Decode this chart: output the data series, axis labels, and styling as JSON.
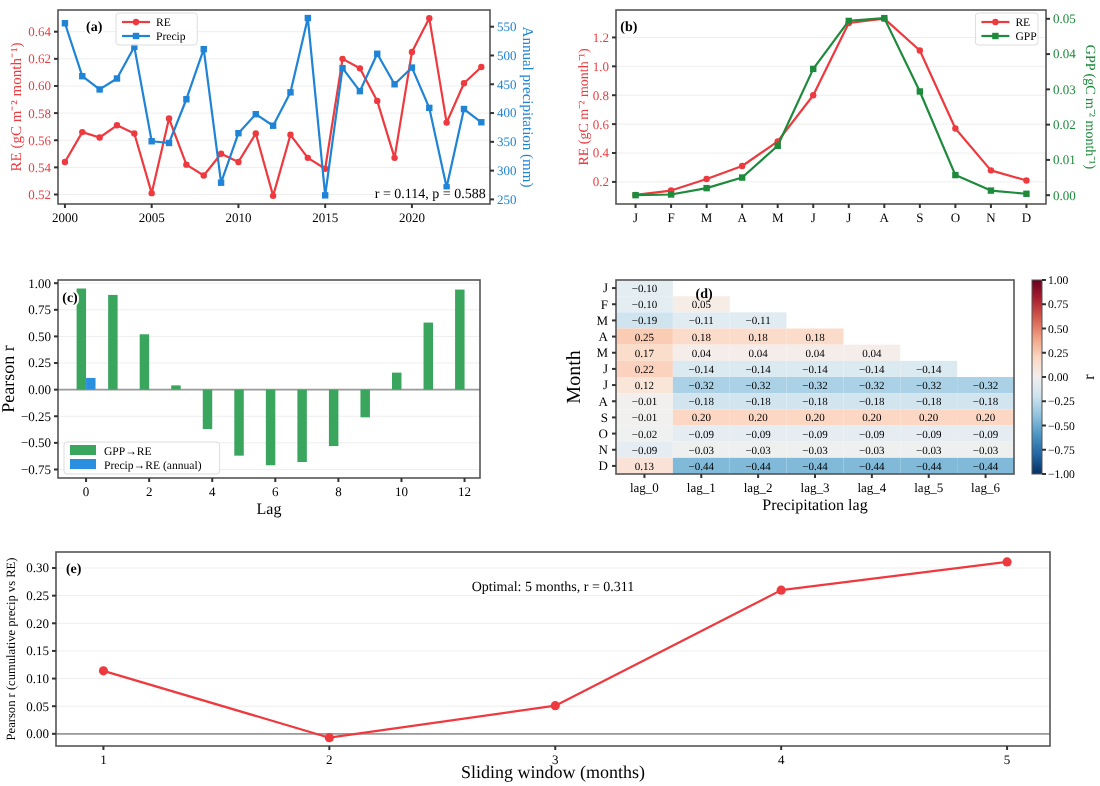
{
  "chart_data": [
    {
      "type": "line",
      "x": [
        2000,
        2001,
        2002,
        2003,
        2004,
        2005,
        2006,
        2007,
        2008,
        2009,
        2010,
        2011,
        2012,
        2013,
        2014,
        2015,
        2016,
        2017,
        2018,
        2019,
        2020,
        2021,
        2022,
        2023,
        2024
      ],
      "series": [
        {
          "name": "RE",
          "color": "#ee3a3f",
          "marker": "circle",
          "values": [
            0.544,
            0.566,
            0.562,
            0.571,
            0.565,
            0.521,
            0.576,
            0.542,
            0.534,
            0.55,
            0.544,
            0.565,
            0.519,
            0.564,
            0.547,
            0.539,
            0.62,
            0.613,
            0.589,
            0.547,
            0.625,
            0.65,
            0.573,
            0.602,
            0.614
          ]
        },
        {
          "name": "Precip",
          "color": "#1f83d6",
          "marker": "square",
          "axis": "y2",
          "values": [
            556,
            464,
            441,
            460,
            515,
            351,
            348,
            424,
            511,
            279,
            365,
            398,
            378,
            436,
            565,
            257,
            478,
            438,
            503,
            450,
            479,
            409,
            271,
            407,
            384
          ]
        }
      ],
      "ylabel": "RE (gC m⁻² month⁻¹)",
      "y2label": "Annual precipitation (mm)",
      "xlim": [
        1999.6,
        2024.5
      ],
      "xticks": [
        2000,
        2005,
        2010,
        2015,
        2020
      ],
      "ylim": [
        0.513,
        0.656
      ],
      "yticks": [
        0.52,
        0.54,
        0.56,
        0.58,
        {
          "value": 0.6,
          "label": "0.60"
        },
        0.62,
        0.64
      ],
      "y2lim": [
        242,
        579
      ],
      "y2ticks": [
        250,
        300,
        350,
        400,
        450,
        500,
        550
      ],
      "grid": "y",
      "legend": "top left",
      "annotations": [
        "(a)",
        "r = 0.114, p = 0.588"
      ]
    },
    {
      "type": "line",
      "categories": [
        "J",
        "F",
        "M",
        "A",
        "M",
        "J",
        "J",
        "A",
        "S",
        "O",
        "N",
        "D"
      ],
      "series": [
        {
          "name": "RE",
          "color": "#ee3a3f",
          "marker": "circle",
          "values": [
            0.11,
            0.14,
            0.22,
            0.31,
            0.48,
            0.8,
            1.3,
            1.33,
            1.11,
            0.57,
            0.28,
            0.21
          ]
        },
        {
          "name": "GPP",
          "color": "#1d8a3c",
          "marker": "square",
          "axis": "y2",
          "values": [
            0.0,
            0.0002,
            0.002,
            0.005,
            0.014,
            0.0358,
            0.0494,
            0.0502,
            0.0294,
            0.0057,
            0.0013,
            0.0004
          ]
        }
      ],
      "ylabel": "RE (gC m⁻² month⁻¹)",
      "y2label": "GPP (gC m⁻² month⁻¹)",
      "ylim": [
        0.047,
        1.39
      ],
      "yticks": [
        0.2,
        0.4,
        0.6,
        0.8,
        {
          "value": 1.0,
          "label": "1.0"
        },
        1.2
      ],
      "y2lim": [
        -0.0025,
        0.0525
      ],
      "y2ticks": [
        {
          "value": 0,
          "label": "0.00"
        },
        {
          "value": 0.01,
          "label": "0.01"
        },
        {
          "value": 0.02,
          "label": "0.02"
        },
        {
          "value": 0.03,
          "label": "0.03"
        },
        {
          "value": 0.04,
          "label": "0.04"
        },
        {
          "value": 0.05,
          "label": "0.05"
        }
      ],
      "grid": "y",
      "legend": "top right",
      "annotations": [
        "(b)"
      ]
    },
    {
      "type": "bar",
      "series": [
        {
          "name": "GPP→RE",
          "color": "#3aa55d",
          "x": [
            0,
            1,
            2,
            3,
            4,
            5,
            6,
            7,
            8,
            9,
            10,
            11,
            12
          ],
          "values": [
            0.95,
            0.89,
            0.52,
            0.04,
            -0.37,
            -0.62,
            -0.71,
            -0.68,
            -0.53,
            -0.26,
            0.16,
            0.63,
            0.94
          ]
        },
        {
          "name": "Precip→RE (annual)",
          "color": "#2b8fe0",
          "x": [
            0
          ],
          "values": [
            0.11
          ]
        }
      ],
      "xlabel": "Lag",
      "ylabel": "Pearson r",
      "xlim": [
        -0.89,
        12.49
      ],
      "xticks": [
        0,
        2,
        4,
        6,
        8,
        10,
        12
      ],
      "ylim": [
        -0.83,
        1.03
      ],
      "yticks": [
        {
          "value": -0.75,
          "label": "−0.75"
        },
        {
          "value": -0.5,
          "label": "−0.50"
        },
        {
          "value": -0.25,
          "label": "−0.25"
        },
        {
          "value": 0,
          "label": "0.00"
        },
        {
          "value": 0.25,
          "label": "0.25"
        },
        {
          "value": 0.5,
          "label": "0.50"
        },
        {
          "value": 0.75,
          "label": "0.75"
        },
        {
          "value": 1,
          "label": "1.00"
        }
      ],
      "ref_lines": [
        {
          "axis": "y",
          "value": 0,
          "color": "#999999"
        }
      ],
      "grid": "y",
      "legend": "bottom left",
      "annotations": [
        "(c)"
      ]
    },
    {
      "type": "heatmap",
      "categories": [
        "lag_0",
        "lag_1",
        "lag_2",
        "lag_3",
        "lag_4",
        "lag_5",
        "lag_6"
      ],
      "y_categories": [
        "J",
        "F",
        "M",
        "A",
        "M",
        "J",
        "J",
        "A",
        "S",
        "O",
        "N",
        "D"
      ],
      "cells": [
        [
          -0.1,
          null,
          null,
          null,
          null,
          null,
          null
        ],
        [
          -0.1,
          0.05,
          null,
          null,
          null,
          null,
          null
        ],
        [
          -0.19,
          -0.11,
          -0.11,
          null,
          null,
          null,
          null
        ],
        [
          0.25,
          0.18,
          0.18,
          0.18,
          null,
          null,
          null
        ],
        [
          0.17,
          0.04,
          0.04,
          0.04,
          0.04,
          null,
          null
        ],
        [
          0.22,
          -0.14,
          -0.14,
          -0.14,
          -0.14,
          -0.14,
          null
        ],
        [
          0.12,
          -0.32,
          -0.32,
          -0.32,
          -0.32,
          -0.32,
          -0.32
        ],
        [
          -0.01,
          -0.18,
          -0.18,
          -0.18,
          -0.18,
          -0.18,
          -0.18
        ],
        [
          -0.01,
          0.2,
          0.2,
          0.2,
          0.2,
          0.2,
          0.2
        ],
        [
          -0.02,
          -0.09,
          -0.09,
          -0.09,
          -0.09,
          -0.09,
          -0.09
        ],
        [
          -0.09,
          -0.03,
          -0.03,
          -0.03,
          -0.03,
          -0.03,
          -0.03
        ],
        [
          0.13,
          -0.44,
          -0.44,
          -0.44,
          -0.44,
          -0.44,
          -0.44
        ]
      ],
      "cell_labels": [
        [
          "−0.10",
          null,
          null,
          null,
          null,
          null,
          null
        ],
        [
          "−0.10",
          "0.05",
          null,
          null,
          null,
          null,
          null
        ],
        [
          "−0.19",
          "−0.11",
          "−0.11",
          null,
          null,
          null,
          null
        ],
        [
          "0.25",
          "0.18",
          "0.18",
          "0.18",
          null,
          null,
          null
        ],
        [
          "0.17",
          "0.04",
          "0.04",
          "0.04",
          "0.04",
          null,
          null
        ],
        [
          "0.22",
          "−0.14",
          "−0.14",
          "−0.14",
          "−0.14",
          "−0.14",
          null
        ],
        [
          "0.12",
          "−0.32",
          "−0.32",
          "−0.32",
          "−0.32",
          "−0.32",
          "−0.32"
        ],
        [
          "−0.01",
          "−0.18",
          "−0.18",
          "−0.18",
          "−0.18",
          "−0.18",
          "−0.18"
        ],
        [
          "−0.01",
          "0.20",
          "0.20",
          "0.20",
          "0.20",
          "0.20",
          "0.20"
        ],
        [
          "−0.02",
          "−0.09",
          "−0.09",
          "−0.09",
          "−0.09",
          "−0.09",
          "−0.09"
        ],
        [
          "−0.09",
          "−0.03",
          "−0.03",
          "−0.03",
          "−0.03",
          "−0.03",
          "−0.03"
        ],
        [
          "0.13",
          "−0.44",
          "−0.44",
          "−0.44",
          "−0.44",
          "−0.44",
          "−0.44"
        ]
      ],
      "xlabel": "Precipitation lag",
      "ylabel": "Month",
      "clabel": "r",
      "clim": [
        -1,
        1
      ],
      "cticks": [
        {
          "value": -1,
          "label": "−1.00"
        },
        {
          "value": -0.75,
          "label": "−0.75"
        },
        {
          "value": -0.5,
          "label": "−0.50"
        },
        {
          "value": -0.25,
          "label": "−0.25"
        },
        {
          "value": 0,
          "label": "0.00"
        },
        {
          "value": 0.25,
          "label": "0.25"
        },
        {
          "value": 0.5,
          "label": "0.50"
        },
        {
          "value": 0.75,
          "label": "0.75"
        },
        {
          "value": 1,
          "label": "1.00"
        }
      ],
      "annotations": [
        "(d)"
      ]
    },
    {
      "type": "line",
      "x": [
        1,
        2,
        3,
        4,
        5
      ],
      "series": [
        {
          "color": "#ee3a3f",
          "marker": "circle",
          "values": [
            0.114,
            -0.007,
            0.051,
            0.26,
            0.311
          ]
        }
      ],
      "xlabel": "Sliding window (months)",
      "ylabel": "Pearson r (cumulative precip vs RE)",
      "xlim": [
        0.79,
        5.19
      ],
      "xticks": [
        1,
        2,
        3,
        4,
        5
      ],
      "ylim": [
        -0.022,
        0.329
      ],
      "yticks": [
        {
          "value": 0,
          "label": "0.00"
        },
        {
          "value": 0.05,
          "label": "0.05"
        },
        {
          "value": 0.1,
          "label": "0.10"
        },
        {
          "value": 0.15,
          "label": "0.15"
        },
        {
          "value": 0.2,
          "label": "0.20"
        },
        {
          "value": 0.25,
          "label": "0.25"
        },
        {
          "value": 0.3,
          "label": "0.30"
        }
      ],
      "ref_lines": [
        {
          "axis": "y",
          "value": 0,
          "color": "#999999"
        }
      ],
      "grid": "y",
      "annotations": [
        "(e)",
        "Optimal: 5 months, r = 0.311"
      ]
    }
  ]
}
